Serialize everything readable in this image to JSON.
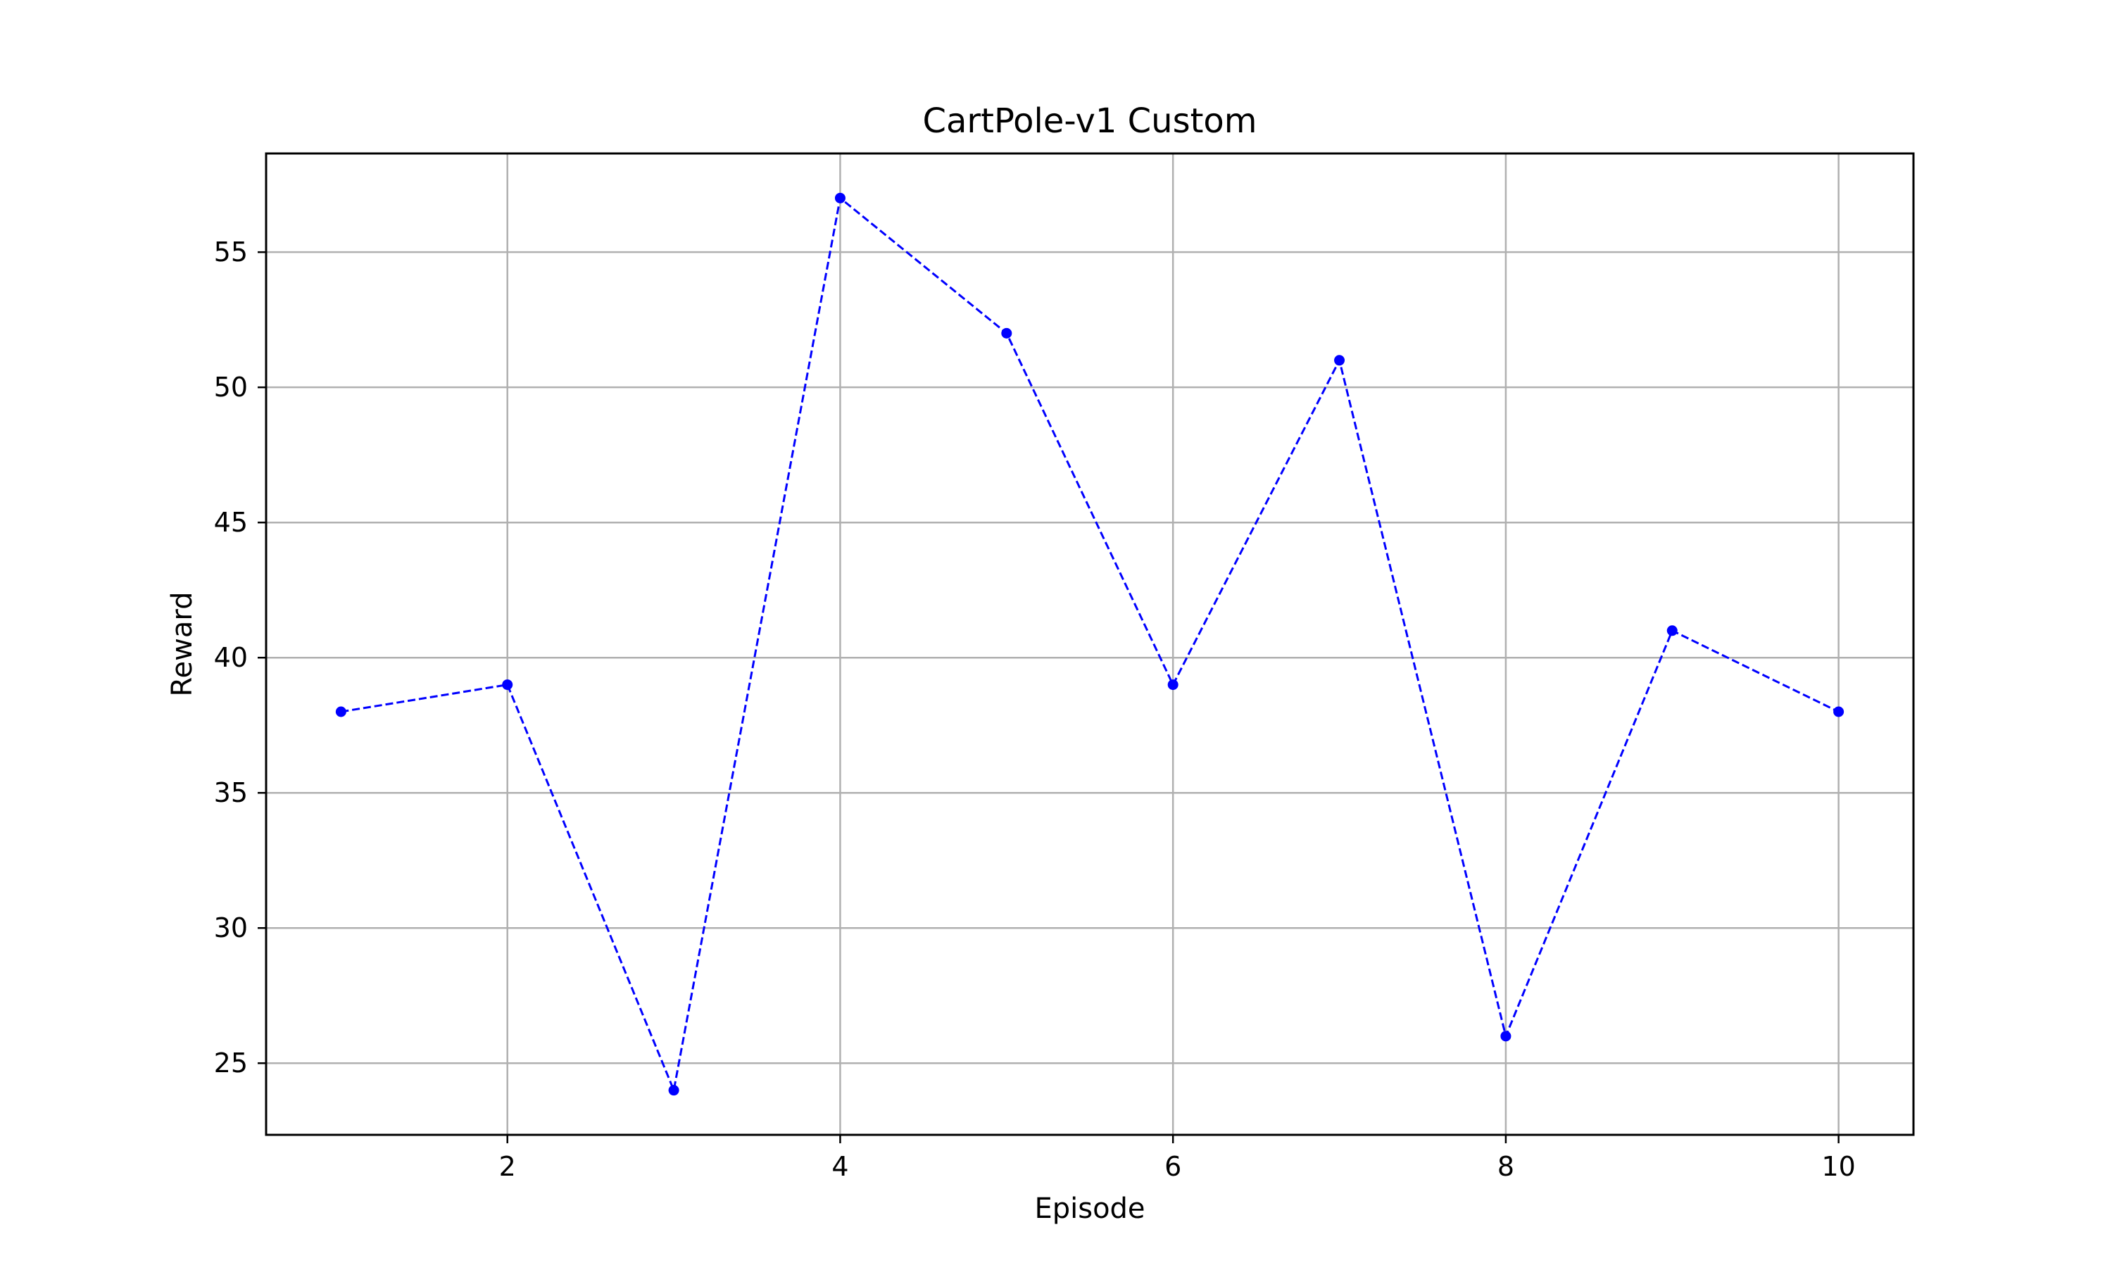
{
  "chart_data": {
    "type": "line",
    "title": "CartPole-v1 Custom",
    "xlabel": "Episode",
    "ylabel": "Reward",
    "x": [
      1,
      2,
      3,
      4,
      5,
      6,
      7,
      8,
      9,
      10
    ],
    "series": [
      {
        "values": [
          38,
          39,
          24,
          57,
          52,
          39,
          51,
          26,
          41,
          38
        ],
        "color": "#0000ff",
        "line_style": "dashed",
        "marker": "circle"
      }
    ],
    "xlim": [
      0.55,
      10.45
    ],
    "ylim": [
      22.35,
      58.65
    ],
    "xticks": [
      2,
      4,
      6,
      8,
      10
    ],
    "xtick_labels": [
      "2",
      "4",
      "6",
      "8",
      "10"
    ],
    "yticks": [
      25,
      30,
      35,
      40,
      45,
      50,
      55
    ],
    "ytick_labels": [
      "25",
      "30",
      "35",
      "40",
      "45",
      "50",
      "55"
    ],
    "grid": true,
    "grid_color": "#b0b0b0",
    "legend": "none"
  }
}
